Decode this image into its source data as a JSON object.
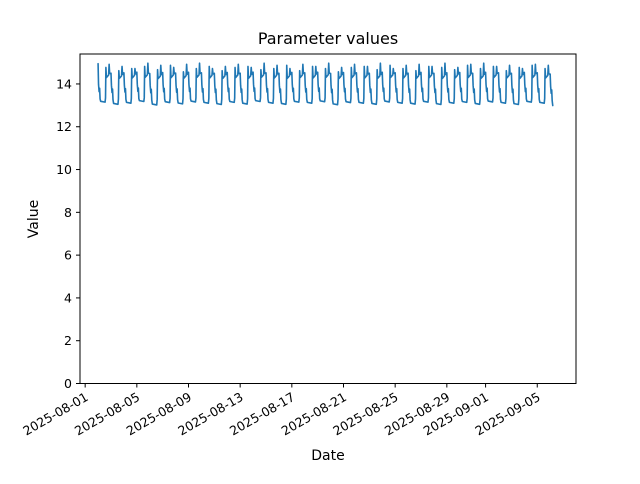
{
  "chart_data": {
    "type": "line",
    "title": "Parameter values",
    "xlabel": "Date",
    "ylabel": "Value",
    "ylim": [
      0,
      15.4
    ],
    "xlim_day_offsets": [
      -0.4,
      38.0
    ],
    "grid": false,
    "legend": "none",
    "line_color": "#1f77b4",
    "line_width": 1.6,
    "y_ticks": [
      0,
      2,
      4,
      6,
      8,
      10,
      12,
      14
    ],
    "x_ticks": [
      {
        "label": "2025-08-01",
        "day_offset": 0
      },
      {
        "label": "2025-08-05",
        "day_offset": 4
      },
      {
        "label": "2025-08-09",
        "day_offset": 8
      },
      {
        "label": "2025-08-13",
        "day_offset": 12
      },
      {
        "label": "2025-08-17",
        "day_offset": 16
      },
      {
        "label": "2025-08-21",
        "day_offset": 20
      },
      {
        "label": "2025-08-25",
        "day_offset": 24
      },
      {
        "label": "2025-08-29",
        "day_offset": 28
      },
      {
        "label": "2025-09-01",
        "day_offset": 31
      },
      {
        "label": "2025-09-05",
        "day_offset": 35
      }
    ],
    "series": {
      "name": "parameter",
      "description": "High-frequency time series 2025-08-02 to 2025-09-06 with a repeating daily cycle: overnight high plateau ~14.4-14.5, morning descent with small bump ~13.8, midday low plateau ~13.1, then two sharp evening spikes ~14.7-15.0 around a high plateau ~14.3-14.5",
      "approx_value_range": [
        12.95,
        15.0
      ],
      "start_day_offset": 1.0,
      "total_span_days": 35.21,
      "first_value": 14.95,
      "daily_pattern": [
        [
          0.0,
          14.52,
          "hi"
        ],
        [
          0.035,
          13.95,
          ""
        ],
        [
          0.08,
          13.62,
          ""
        ],
        [
          0.12,
          13.78,
          ""
        ],
        [
          0.155,
          13.28,
          ""
        ],
        [
          0.2,
          13.14,
          "low"
        ],
        [
          0.54,
          13.1,
          "low"
        ],
        [
          0.575,
          13.32,
          ""
        ],
        [
          0.605,
          14.72,
          "spike1"
        ],
        [
          0.645,
          14.28,
          "hi"
        ],
        [
          0.72,
          14.33,
          "hi"
        ],
        [
          0.815,
          14.4,
          "hi"
        ],
        [
          0.855,
          14.82,
          "spike2"
        ],
        [
          0.895,
          14.48,
          "hi"
        ],
        [
          0.96,
          14.46,
          "hi"
        ]
      ],
      "spike1_jitter": [
        0.05,
        -0.1,
        0.0,
        0.1,
        -0.05,
        0.15,
        -0.15,
        0.0,
        0.1,
        -0.1,
        0.05,
        0.1,
        -0.05,
        0.0,
        0.15,
        -0.1,
        0.1,
        0.0,
        -0.15,
        0.05,
        0.1,
        -0.05,
        0.15,
        0.0,
        -0.1,
        0.1,
        0.05,
        -0.05,
        0.15,
        0.0,
        0.1,
        -0.1,
        0.05,
        0.15,
        0.0,
        -0.05
      ],
      "spike2_jitter": [
        0.1,
        0.0,
        -0.1,
        0.15,
        0.05,
        -0.05,
        0.1,
        0.15,
        -0.1,
        0.0,
        0.1,
        -0.05,
        0.15,
        0.05,
        -0.1,
        0.1,
        0.0,
        0.15,
        -0.05,
        0.1,
        0.0,
        0.15,
        -0.1,
        0.05,
        0.1,
        0.0,
        0.15,
        -0.05,
        0.1,
        0.15,
        0.0,
        0.05,
        -0.1,
        0.1,
        0.05,
        0.0
      ],
      "low_jitter": [
        0.05,
        -0.05,
        0.0,
        0.08,
        -0.08,
        0.03,
        -0.03,
        0.06,
        0.0,
        -0.06,
        0.04,
        -0.04,
        0.08,
        0.0,
        -0.05,
        0.05,
        0.0,
        0.07,
        -0.07,
        0.03,
        0.0,
        -0.05,
        0.06,
        0.0,
        -0.04,
        0.05,
        -0.06,
        0.0,
        0.04,
        -0.05,
        0.06,
        0.0,
        -0.06,
        0.05,
        0.0,
        -0.15
      ]
    }
  }
}
